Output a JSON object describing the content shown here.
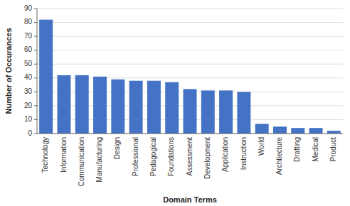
{
  "chart_data": {
    "type": "bar",
    "categories": [
      "Technology",
      "Information",
      "Communication",
      "Manufacturing",
      "Design",
      "Professional",
      "Pedagogical",
      "Foundations",
      "Assessment",
      "Development",
      "Application",
      "Instruction",
      "World",
      "Archtiecture",
      "Drafting",
      "Medical",
      "Product"
    ],
    "values": [
      82,
      42,
      42,
      41,
      39,
      38,
      38,
      37,
      32,
      31,
      31,
      30,
      7,
      5,
      4,
      4,
      2
    ],
    "color": "#4472C4",
    "xlabel": "Domain Terms",
    "ylabel": "Number of Occurances",
    "ylim": [
      0,
      90
    ],
    "yticks": [
      0,
      10,
      20,
      30,
      40,
      50,
      60,
      70,
      80,
      90
    ],
    "grid": true
  }
}
